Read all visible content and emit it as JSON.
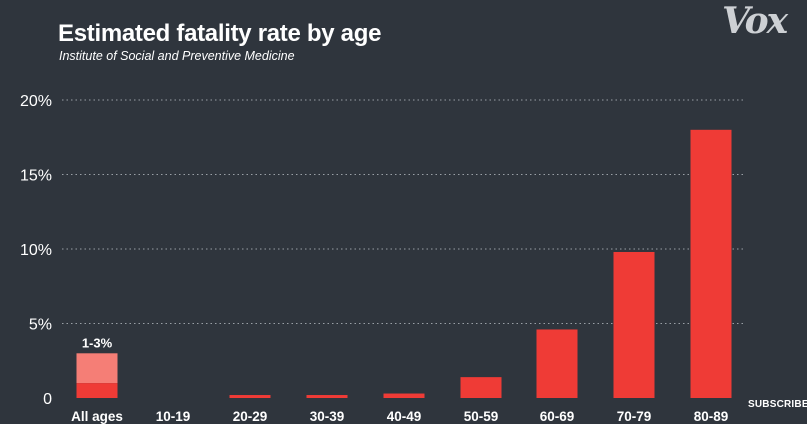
{
  "header": {
    "title": "Estimated fatality rate by age",
    "subtitle": "Institute of Social and Preventive Medicine",
    "logo_text": "Vox",
    "subscribe_label": "SUBSCRIBE"
  },
  "colors": {
    "background": "#2f353d",
    "bar": "#ef3b36",
    "bar_light": "#f57e76",
    "grid": "#9aa0a6"
  },
  "chart_data": {
    "type": "bar",
    "title": "Estimated fatality rate by age",
    "subtitle": "Institute of Social and Preventive Medicine",
    "xlabel": "",
    "ylabel": "",
    "ylim": [
      0,
      20
    ],
    "yticks": [
      0,
      5,
      10,
      15,
      20
    ],
    "ytick_labels": [
      "0",
      "5%",
      "10%",
      "15%",
      "20%"
    ],
    "grid": true,
    "categories": [
      "All ages",
      "10-19",
      "20-29",
      "30-39",
      "40-49",
      "50-59",
      "60-69",
      "70-79",
      "80-89"
    ],
    "values": [
      1,
      0,
      0.2,
      0.2,
      0.3,
      1.4,
      4.6,
      9.8,
      18
    ],
    "all_ages_range": {
      "low": 1,
      "high": 3,
      "label": "1-3%"
    }
  }
}
